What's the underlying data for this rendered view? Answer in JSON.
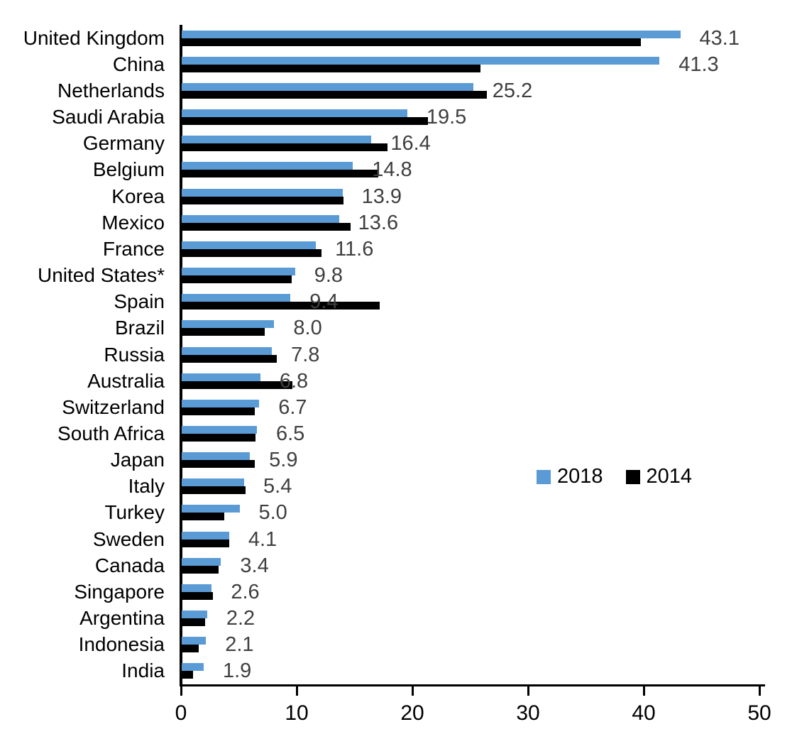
{
  "chart_data": {
    "type": "bar",
    "orientation": "horizontal",
    "title": "",
    "xlabel": "",
    "ylabel": "",
    "categories": [
      "United Kingdom",
      "China",
      "Netherlands",
      "Saudi Arabia",
      "Germany",
      "Belgium",
      "Korea",
      "Mexico",
      "France",
      "United States*",
      "Spain",
      "Brazil",
      "Russia",
      "Australia",
      "Switzerland",
      "South Africa",
      "Japan",
      "Italy",
      "Turkey",
      "Sweden",
      "Canada",
      "Singapore",
      "Argentina",
      "Indonesia",
      "India"
    ],
    "series": [
      {
        "name": "2018",
        "color": "#5B9BD5",
        "values": [
          43.1,
          41.3,
          25.2,
          19.5,
          16.4,
          14.8,
          13.9,
          13.6,
          11.6,
          9.8,
          9.4,
          8.0,
          7.8,
          6.8,
          6.7,
          6.5,
          5.9,
          5.4,
          5.0,
          4.1,
          3.4,
          2.6,
          2.2,
          2.1,
          1.9
        ]
      },
      {
        "name": "2014",
        "color": "#000000",
        "values": [
          39.7,
          25.8,
          26.4,
          21.3,
          17.8,
          17.0,
          14.0,
          14.6,
          12.1,
          9.5,
          17.1,
          7.2,
          8.2,
          9.6,
          6.3,
          6.4,
          6.3,
          5.5,
          3.7,
          4.1,
          3.2,
          2.7,
          2.0,
          1.5,
          1.0
        ]
      }
    ],
    "data_labels": {
      "from_series": "2018",
      "decimals": 1,
      "color": "#3F3F3F"
    },
    "xlim": [
      0,
      50
    ],
    "xticks": [
      0,
      10,
      20,
      30,
      40,
      50
    ],
    "grid": false,
    "legend_position": "center-right"
  }
}
